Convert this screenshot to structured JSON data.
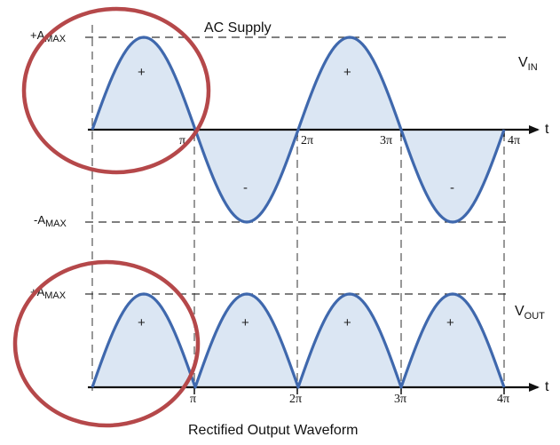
{
  "colors": {
    "wave": "#3f68ad",
    "fill": "#dbe6f3",
    "circle": "#b5484a",
    "axis": "#111111",
    "dash": "#333333"
  },
  "top": {
    "title": "AC Supply",
    "amax_pos_prefix": "+A",
    "amax_neg_prefix": "-A",
    "amax_sub": "MAX",
    "v_label": "V",
    "v_sub": "IN",
    "t_label": "t",
    "ticks": [
      "π",
      "2π",
      "3π",
      "4π"
    ],
    "signs": [
      "+",
      "-",
      "+",
      "-"
    ]
  },
  "bottom": {
    "title": "Rectified Output Waveform",
    "amax_pos_prefix": "+A",
    "amax_sub": "MAX",
    "v_label": "V",
    "v_sub": "OUT",
    "t_label": "t",
    "ticks": [
      "π",
      "2π",
      "3π",
      "4π"
    ],
    "signs": [
      "+",
      "+",
      "+",
      "+"
    ]
  }
}
